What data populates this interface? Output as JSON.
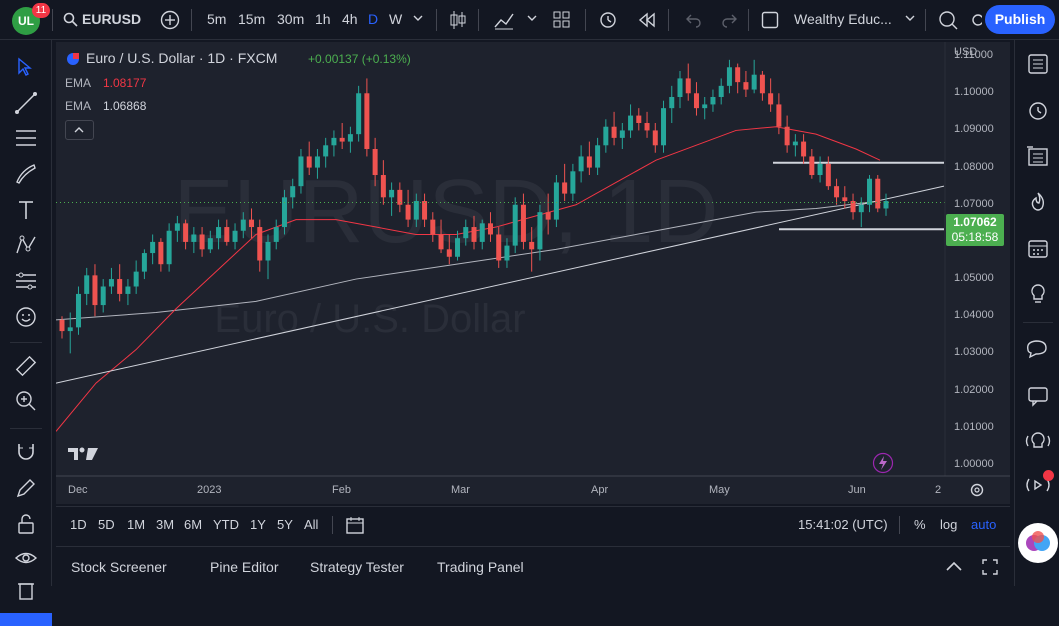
{
  "toolbar": {
    "badge": "11",
    "logo_text": "UL",
    "symbol": "EURUSD",
    "intervals": [
      "5m",
      "15m",
      "30m",
      "1h",
      "4h",
      "D",
      "W"
    ],
    "active_interval": "D",
    "layout_name": "Wealthy Educ...",
    "publish_label": "Publish"
  },
  "legend": {
    "title": "Euro / U.S. Dollar · 1D · FXCM",
    "change": "+0.00137 (+0.13%)",
    "ema1_label": "EMA",
    "ema1_value": "1.08177",
    "ema2_label": "EMA",
    "ema2_value": "1.06868"
  },
  "watermark": {
    "symbol": "EURUSD, 1D",
    "name": "Euro / U.S. Dollar"
  },
  "price_axis": {
    "currency": "USD",
    "ticks": [
      "1.11000",
      "1.10000",
      "1.09000",
      "1.08000",
      "1.07000",
      "1.06000",
      "1.05000",
      "1.04000",
      "1.03000",
      "1.02000",
      "1.01000",
      "1.00000"
    ],
    "current_price": "1.07062",
    "countdown": "05:18:58"
  },
  "time_axis": {
    "ticks": [
      "Dec",
      "2023",
      "Feb",
      "Mar",
      "Apr",
      "May",
      "Jun",
      "2"
    ]
  },
  "bottom": {
    "ranges": [
      "1D",
      "5D",
      "1M",
      "3M",
      "6M",
      "YTD",
      "1Y",
      "5Y",
      "All"
    ],
    "clock": "15:41:02 (UTC)",
    "percent": "%",
    "log": "log",
    "auto": "auto"
  },
  "panels": [
    "Stock Screener",
    "Pine Editor",
    "Strategy Tester",
    "Trading Panel"
  ],
  "colors": {
    "up": "#26a69a",
    "down": "#ef5350",
    "accent": "#2962ff",
    "ema_fast": "#f23645",
    "ema_slow": "#b2b5be",
    "price_label": "#4caf50"
  },
  "chart_data": {
    "type": "candlestick",
    "ylim": [
      0.997,
      1.1138
    ],
    "ema_fast_points": [
      [
        0,
        1.009
      ],
      [
        40,
        1.022
      ],
      [
        80,
        1.031
      ],
      [
        120,
        1.042
      ],
      [
        160,
        1.052
      ],
      [
        200,
        1.062
      ],
      [
        240,
        1.066
      ],
      [
        280,
        1.066
      ],
      [
        320,
        1.064
      ],
      [
        360,
        1.062
      ],
      [
        400,
        1.062
      ],
      [
        440,
        1.064
      ],
      [
        480,
        1.067
      ],
      [
        520,
        1.07
      ],
      [
        560,
        1.076
      ],
      [
        600,
        1.082
      ],
      [
        640,
        1.086
      ],
      [
        680,
        1.09
      ],
      [
        720,
        1.091
      ],
      [
        760,
        1.089
      ],
      [
        800,
        1.085
      ],
      [
        824,
        1.082
      ]
    ],
    "ema_slow_points": [
      [
        0,
        1.039
      ],
      [
        100,
        1.041
      ],
      [
        200,
        1.044
      ],
      [
        300,
        1.05
      ],
      [
        400,
        1.054
      ],
      [
        500,
        1.058
      ],
      [
        600,
        1.063
      ],
      [
        700,
        1.068
      ],
      [
        760,
        1.069
      ],
      [
        824,
        1.071
      ]
    ],
    "trendline": [
      [
        0,
        1.022
      ],
      [
        888,
        1.075
      ]
    ],
    "resistance": [
      [
        717,
        1.0813
      ],
      [
        888,
        1.0813
      ]
    ],
    "support": [
      [
        723,
        1.0634
      ],
      [
        888,
        1.0634
      ]
    ],
    "candles": [
      [
        1.039,
        1.04,
        1.034,
        1.036
      ],
      [
        1.036,
        1.041,
        1.03,
        1.037
      ],
      [
        1.037,
        1.048,
        1.035,
        1.046
      ],
      [
        1.046,
        1.053,
        1.043,
        1.051
      ],
      [
        1.051,
        1.054,
        1.04,
        1.043
      ],
      [
        1.043,
        1.05,
        1.041,
        1.048
      ],
      [
        1.048,
        1.053,
        1.046,
        1.05
      ],
      [
        1.05,
        1.054,
        1.044,
        1.046
      ],
      [
        1.046,
        1.05,
        1.043,
        1.048
      ],
      [
        1.048,
        1.055,
        1.046,
        1.052
      ],
      [
        1.052,
        1.058,
        1.05,
        1.057
      ],
      [
        1.057,
        1.062,
        1.054,
        1.06
      ],
      [
        1.06,
        1.061,
        1.052,
        1.054
      ],
      [
        1.054,
        1.065,
        1.052,
        1.063
      ],
      [
        1.063,
        1.067,
        1.06,
        1.065
      ],
      [
        1.065,
        1.066,
        1.058,
        1.06
      ],
      [
        1.06,
        1.064,
        1.057,
        1.062
      ],
      [
        1.062,
        1.064,
        1.056,
        1.058
      ],
      [
        1.058,
        1.063,
        1.057,
        1.061
      ],
      [
        1.061,
        1.066,
        1.058,
        1.064
      ],
      [
        1.064,
        1.066,
        1.059,
        1.06
      ],
      [
        1.06,
        1.065,
        1.058,
        1.063
      ],
      [
        1.063,
        1.068,
        1.061,
        1.066
      ],
      [
        1.066,
        1.069,
        1.061,
        1.064
      ],
      [
        1.064,
        1.066,
        1.052,
        1.055
      ],
      [
        1.055,
        1.062,
        1.05,
        1.06
      ],
      [
        1.06,
        1.066,
        1.058,
        1.064
      ],
      [
        1.064,
        1.074,
        1.062,
        1.072
      ],
      [
        1.072,
        1.077,
        1.069,
        1.075
      ],
      [
        1.075,
        1.085,
        1.073,
        1.083
      ],
      [
        1.083,
        1.087,
        1.078,
        1.08
      ],
      [
        1.08,
        1.085,
        1.077,
        1.083
      ],
      [
        1.083,
        1.088,
        1.08,
        1.086
      ],
      [
        1.086,
        1.09,
        1.083,
        1.088
      ],
      [
        1.088,
        1.092,
        1.085,
        1.087
      ],
      [
        1.087,
        1.091,
        1.084,
        1.089
      ],
      [
        1.089,
        1.102,
        1.087,
        1.1
      ],
      [
        1.1,
        1.104,
        1.083,
        1.085
      ],
      [
        1.085,
        1.088,
        1.075,
        1.078
      ],
      [
        1.078,
        1.082,
        1.07,
        1.072
      ],
      [
        1.072,
        1.076,
        1.067,
        1.074
      ],
      [
        1.074,
        1.076,
        1.068,
        1.07
      ],
      [
        1.07,
        1.074,
        1.064,
        1.066
      ],
      [
        1.066,
        1.073,
        1.064,
        1.071
      ],
      [
        1.071,
        1.073,
        1.064,
        1.066
      ],
      [
        1.066,
        1.068,
        1.06,
        1.062
      ],
      [
        1.062,
        1.066,
        1.057,
        1.058
      ],
      [
        1.058,
        1.062,
        1.054,
        1.056
      ],
      [
        1.056,
        1.063,
        1.055,
        1.061
      ],
      [
        1.061,
        1.066,
        1.059,
        1.064
      ],
      [
        1.064,
        1.067,
        1.058,
        1.06
      ],
      [
        1.06,
        1.066,
        1.058,
        1.065
      ],
      [
        1.065,
        1.068,
        1.06,
        1.062
      ],
      [
        1.062,
        1.064,
        1.053,
        1.055
      ],
      [
        1.055,
        1.061,
        1.053,
        1.059
      ],
      [
        1.059,
        1.072,
        1.057,
        1.07
      ],
      [
        1.07,
        1.073,
        1.058,
        1.06
      ],
      [
        1.06,
        1.064,
        1.052,
        1.058
      ],
      [
        1.058,
        1.07,
        1.055,
        1.068
      ],
      [
        1.068,
        1.073,
        1.062,
        1.066
      ],
      [
        1.066,
        1.078,
        1.064,
        1.076
      ],
      [
        1.076,
        1.081,
        1.071,
        1.073
      ],
      [
        1.073,
        1.081,
        1.071,
        1.079
      ],
      [
        1.079,
        1.086,
        1.076,
        1.083
      ],
      [
        1.083,
        1.087,
        1.078,
        1.08
      ],
      [
        1.08,
        1.088,
        1.078,
        1.086
      ],
      [
        1.086,
        1.093,
        1.084,
        1.091
      ],
      [
        1.091,
        1.095,
        1.086,
        1.088
      ],
      [
        1.088,
        1.092,
        1.085,
        1.09
      ],
      [
        1.09,
        1.097,
        1.088,
        1.094
      ],
      [
        1.094,
        1.096,
        1.09,
        1.092
      ],
      [
        1.092,
        1.095,
        1.088,
        1.09
      ],
      [
        1.09,
        1.092,
        1.084,
        1.086
      ],
      [
        1.086,
        1.098,
        1.084,
        1.096
      ],
      [
        1.096,
        1.102,
        1.092,
        1.099
      ],
      [
        1.099,
        1.106,
        1.096,
        1.104
      ],
      [
        1.104,
        1.108,
        1.098,
        1.1
      ],
      [
        1.1,
        1.103,
        1.094,
        1.096
      ],
      [
        1.096,
        1.099,
        1.093,
        1.097
      ],
      [
        1.097,
        1.101,
        1.095,
        1.099
      ],
      [
        1.099,
        1.104,
        1.097,
        1.102
      ],
      [
        1.102,
        1.109,
        1.1,
        1.107
      ],
      [
        1.107,
        1.108,
        1.1,
        1.103
      ],
      [
        1.103,
        1.106,
        1.099,
        1.101
      ],
      [
        1.101,
        1.109,
        1.1,
        1.105
      ],
      [
        1.105,
        1.106,
        1.098,
        1.1
      ],
      [
        1.1,
        1.104,
        1.095,
        1.097
      ],
      [
        1.097,
        1.1,
        1.089,
        1.091
      ],
      [
        1.091,
        1.094,
        1.084,
        1.086
      ],
      [
        1.086,
        1.089,
        1.083,
        1.087
      ],
      [
        1.087,
        1.089,
        1.081,
        1.083
      ],
      [
        1.083,
        1.085,
        1.077,
        1.078
      ],
      [
        1.078,
        1.083,
        1.076,
        1.081
      ],
      [
        1.081,
        1.083,
        1.074,
        1.075
      ],
      [
        1.075,
        1.077,
        1.07,
        1.072
      ],
      [
        1.072,
        1.075,
        1.069,
        1.071
      ],
      [
        1.071,
        1.073,
        1.066,
        1.068
      ],
      [
        1.068,
        1.072,
        1.064,
        1.07
      ],
      [
        1.07,
        1.078,
        1.068,
        1.077
      ],
      [
        1.077,
        1.078,
        1.068,
        1.069
      ],
      [
        1.069,
        1.073,
        1.067,
        1.071
      ]
    ]
  }
}
